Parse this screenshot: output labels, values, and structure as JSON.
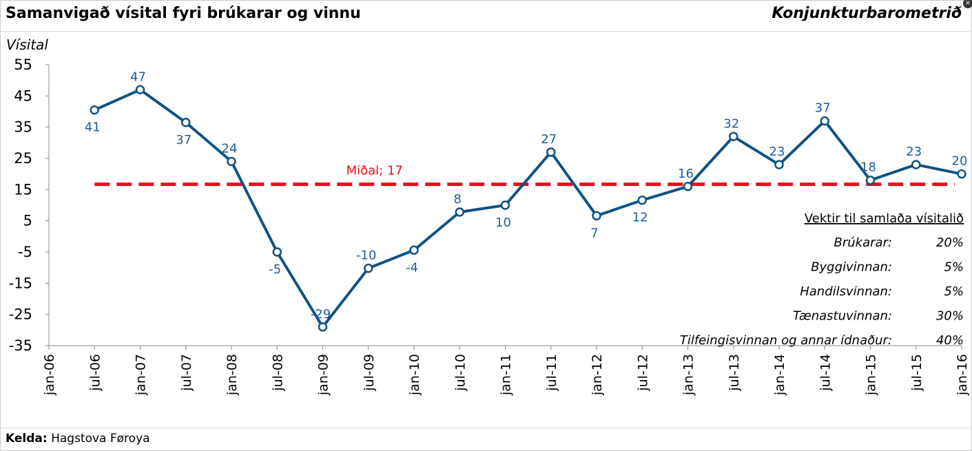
{
  "header": {
    "title": "Samanvigað vísital fyri brúkarar og vinnu",
    "brand": "Konjunkturbarometrið"
  },
  "footer": {
    "source_label": "Kelda:",
    "source_value": "Hagstova Føroya"
  },
  "chart_data": {
    "type": "line",
    "title": "Samanvigað vísital fyri brúkarar og vinnu",
    "ylabel": "Vísital",
    "ylim": [
      -35,
      55
    ],
    "yticks": [
      55,
      45,
      35,
      25,
      15,
      5,
      -5,
      -15,
      -25,
      -35
    ],
    "grid": false,
    "xtick_labels": [
      "jan-06",
      "jul-06",
      "jan-07",
      "jul-07",
      "jan-08",
      "jul-08",
      "jan-09",
      "jul-09",
      "jan-10",
      "jul-10",
      "jan-11",
      "jul-11",
      "jan-12",
      "jul-12",
      "jan-13",
      "jul-13",
      "jan-14",
      "jul-14",
      "jan-15",
      "jul-15",
      "jan-16"
    ],
    "series": [
      {
        "values": [
          null,
          40.5,
          47,
          36.5,
          24,
          -5,
          -29,
          -10.2,
          -4.4,
          7.8,
          10,
          27,
          6.6,
          11.6,
          16,
          32,
          23,
          37,
          18,
          23,
          20
        ],
        "labels": [
          null,
          "41",
          "47",
          "37",
          "24",
          "-5",
          "-29",
          "-10",
          "-4",
          "8",
          "10",
          "27",
          "7",
          "12",
          "16",
          "32",
          "23",
          "37",
          "18",
          "23",
          "20"
        ],
        "label_pos": [
          null,
          "below",
          "above",
          "below",
          "above",
          "below",
          "above",
          "above",
          "below",
          "above",
          "below",
          "above",
          "below",
          "below",
          "above",
          "above",
          "above",
          "above",
          "above",
          "above",
          "above"
        ],
        "color": "#0f5283"
      }
    ],
    "mean": {
      "label": "Miðal; 17",
      "value": 16.7,
      "color": "#e8101a"
    },
    "weights_table": {
      "title": "Vektir til samlaða vísitalið",
      "rows": [
        {
          "name": "Brúkarar:",
          "value": "20%"
        },
        {
          "name": "Byggivinnan:",
          "value": "5%"
        },
        {
          "name": "Handilsvinnan:",
          "value": "5%"
        },
        {
          "name": "Tænastuvinnan:",
          "value": "30%"
        },
        {
          "name": "Tilfeingisvinnan og annar ídnaður:",
          "value": "40%"
        }
      ]
    }
  }
}
